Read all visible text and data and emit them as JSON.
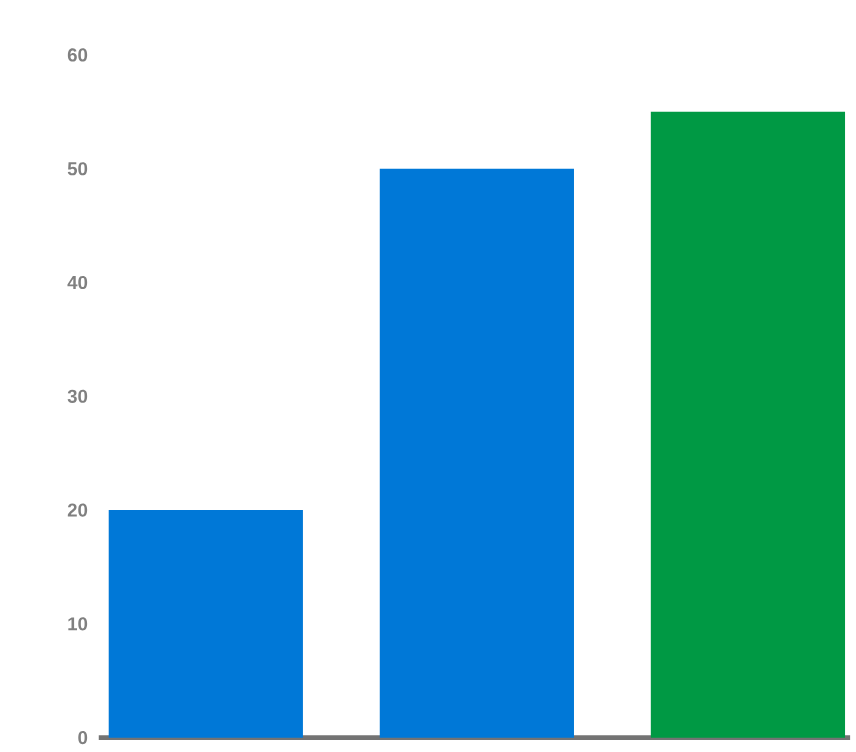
{
  "chart_data": {
    "type": "bar",
    "categories": [
      null,
      null,
      null
    ],
    "values": [
      20,
      50,
      55
    ],
    "colors": [
      "#0078d7",
      "#0078d7",
      "#009944"
    ],
    "ylim": [
      0,
      60
    ],
    "yticks": [
      0,
      10,
      20,
      30,
      40,
      50,
      60
    ]
  }
}
